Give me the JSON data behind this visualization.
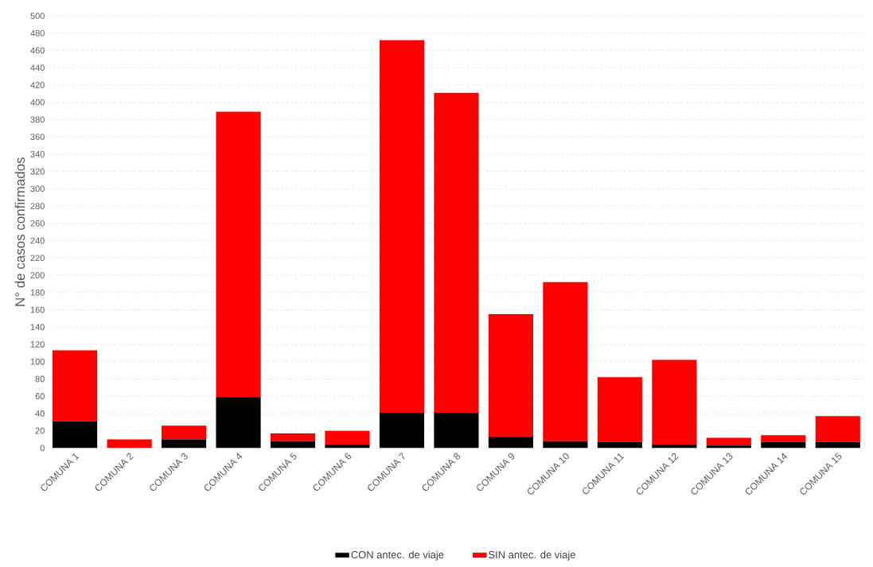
{
  "chart_data": {
    "type": "bar",
    "stacked": true,
    "ylabel": "N° de casos confirmados",
    "categories": [
      "COMUNA 1",
      "COMUNA 2",
      "COMUNA 3",
      "COMUNA 4",
      "COMUNA 5",
      "COMUNA 6",
      "COMUNA 7",
      "COMUNA 8",
      "COMUNA 9",
      "COMUNA 10",
      "COMUNA 11",
      "COMUNA 12",
      "COMUNA 13",
      "COMUNA 14",
      "COMUNA 15"
    ],
    "series": [
      {
        "name": "CON antec. de viaje",
        "color": "#000000",
        "values": [
          31,
          0,
          10,
          59,
          8,
          4,
          41,
          41,
          13,
          8,
          7,
          4,
          3,
          7,
          7
        ]
      },
      {
        "name": "SIN antec. de viaje",
        "color": "#ff0000",
        "values": [
          82,
          10,
          16,
          330,
          9,
          16,
          431,
          370,
          142,
          184,
          75,
          98,
          9,
          8,
          30
        ]
      }
    ],
    "ylim": [
      0,
      500
    ],
    "yticks": [
      0,
      20,
      40,
      60,
      80,
      100,
      120,
      140,
      160,
      180,
      200,
      220,
      240,
      260,
      280,
      300,
      320,
      340,
      360,
      380,
      400,
      420,
      440,
      460,
      480,
      500
    ],
    "grid": "y",
    "legend": "bottom"
  }
}
